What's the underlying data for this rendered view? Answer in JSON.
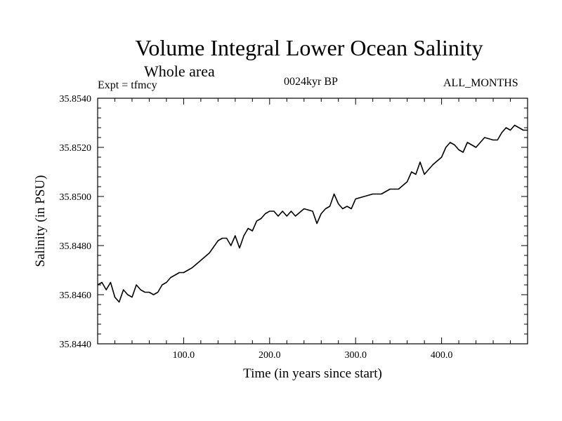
{
  "chart_data": {
    "type": "line",
    "title": "Volume Integral Lower Ocean Salinity",
    "subtitle": "Whole area",
    "experiment": "Expt = tfmcy",
    "period": "0024kyr BP",
    "months": "ALL_MONTHS",
    "xlabel": "Time (in years since start)",
    "ylabel": "Salinity (in PSU)",
    "xlim": [
      0,
      500
    ],
    "ylim": [
      35.844,
      35.854
    ],
    "x_ticks": [
      100,
      200,
      300,
      400
    ],
    "x_tick_labels": [
      "100.0",
      "200.0",
      "300.0",
      "400.0"
    ],
    "y_ticks": [
      35.844,
      35.846,
      35.848,
      35.85,
      35.852,
      35.854
    ],
    "y_tick_labels": [
      "35.8440",
      "35.8460",
      "35.8480",
      "35.8500",
      "35.8520",
      "35.8540"
    ],
    "series": [
      {
        "name": "salinity",
        "x": [
          0,
          5,
          10,
          15,
          20,
          25,
          30,
          35,
          40,
          45,
          50,
          55,
          60,
          65,
          70,
          75,
          80,
          85,
          90,
          95,
          100,
          110,
          120,
          130,
          140,
          145,
          150,
          155,
          160,
          165,
          170,
          175,
          180,
          185,
          190,
          195,
          200,
          205,
          210,
          215,
          220,
          225,
          230,
          240,
          250,
          255,
          260,
          265,
          270,
          275,
          280,
          285,
          290,
          295,
          300,
          310,
          320,
          330,
          340,
          350,
          360,
          365,
          370,
          375,
          380,
          385,
          390,
          400,
          405,
          410,
          415,
          420,
          425,
          430,
          440,
          450,
          460,
          465,
          470,
          475,
          480,
          485,
          490,
          495,
          500
        ],
        "y": [
          35.8464,
          35.8465,
          35.8462,
          35.8465,
          35.8459,
          35.8457,
          35.8462,
          35.846,
          35.8459,
          35.8464,
          35.8462,
          35.8461,
          35.8461,
          35.846,
          35.8461,
          35.8464,
          35.8465,
          35.8467,
          35.8468,
          35.8469,
          35.8469,
          35.8471,
          35.8474,
          35.8477,
          35.8482,
          35.8483,
          35.8483,
          35.848,
          35.8484,
          35.8479,
          35.8484,
          35.8487,
          35.8486,
          35.849,
          35.8491,
          35.8493,
          35.8494,
          35.8494,
          35.8492,
          35.8494,
          35.8492,
          35.8494,
          35.8492,
          35.8495,
          35.8494,
          35.8489,
          35.8493,
          35.8495,
          35.8496,
          35.8501,
          35.8497,
          35.8495,
          35.8496,
          35.8495,
          35.8499,
          35.85,
          35.8501,
          35.8501,
          35.8503,
          35.8503,
          35.8506,
          35.851,
          35.8509,
          35.8514,
          35.8509,
          35.8511,
          35.8513,
          35.8516,
          35.852,
          35.8522,
          35.8521,
          35.8519,
          35.8518,
          35.8522,
          35.852,
          35.8524,
          35.8523,
          35.8523,
          35.8526,
          35.8528,
          35.8527,
          35.8529,
          35.8528,
          35.8527,
          35.8527
        ]
      }
    ]
  }
}
